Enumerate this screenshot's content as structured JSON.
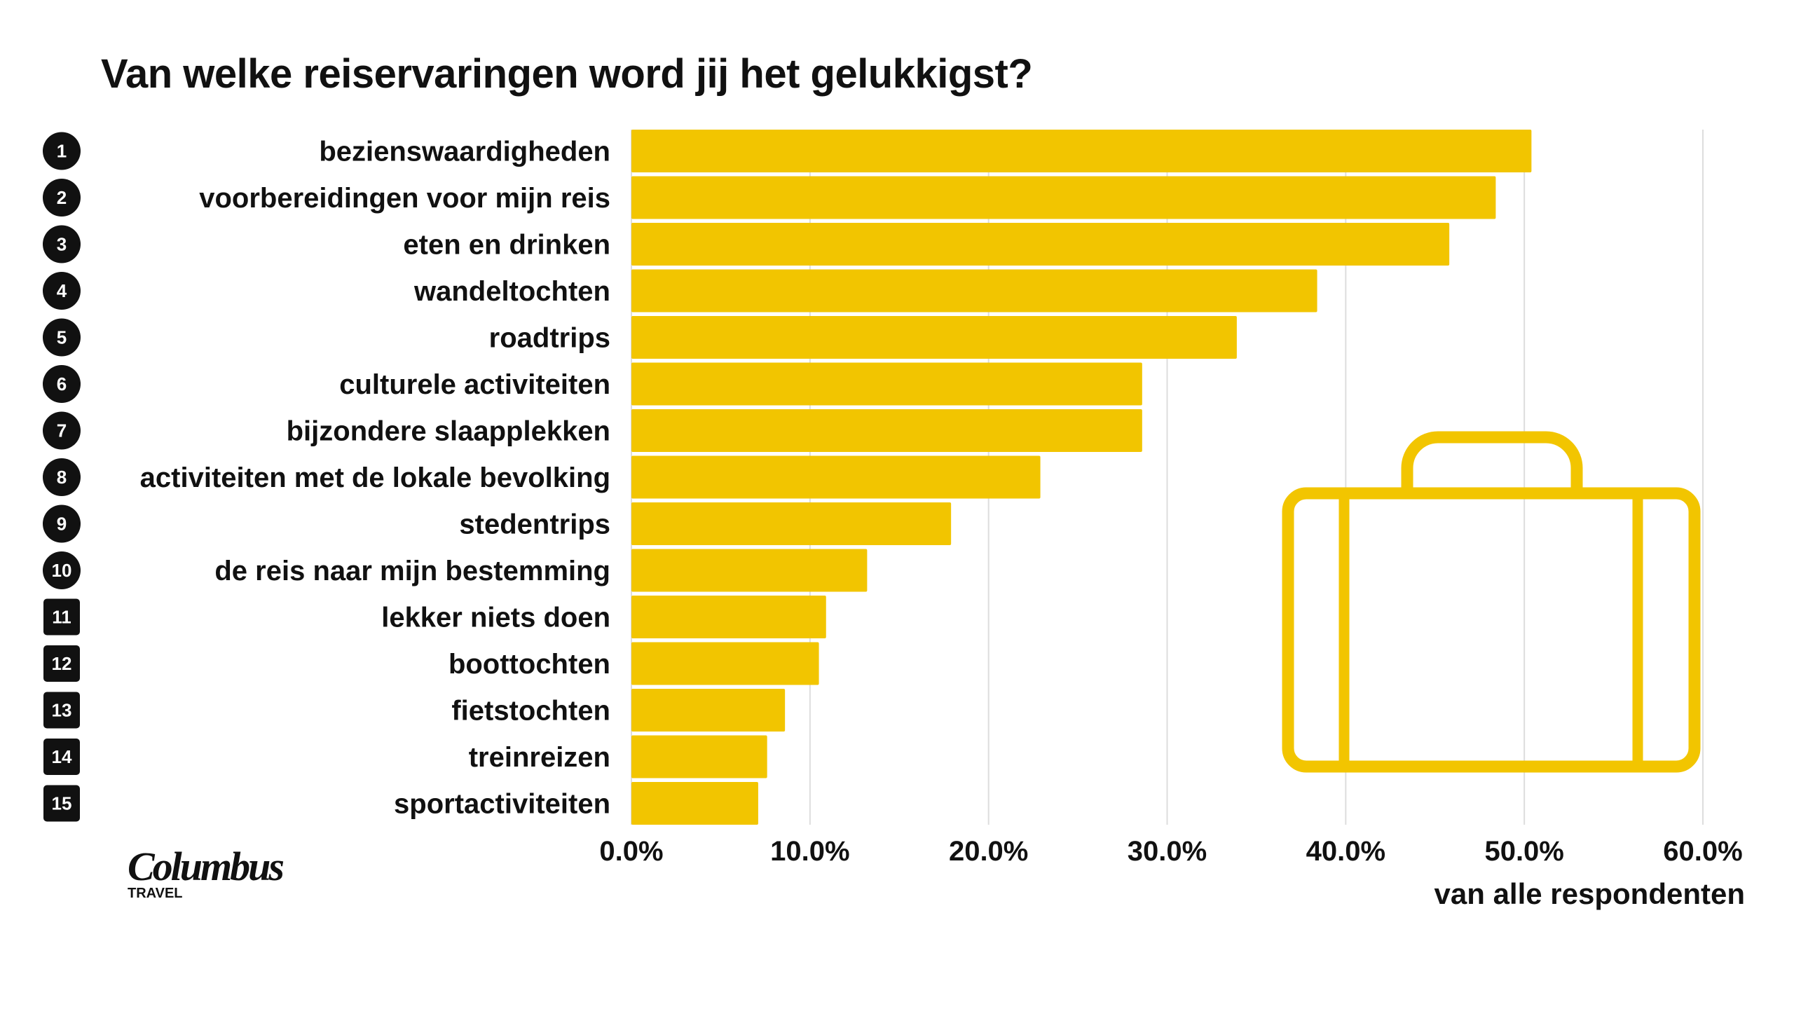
{
  "chart_data": {
    "type": "bar",
    "orientation": "horizontal",
    "title": "Van welke reiservaringen word jij het gelukkigst?",
    "xlabel": "van alle respondenten",
    "ylabel": "",
    "xlim": [
      0,
      60
    ],
    "ticks": [
      "0.0%",
      "10.0%",
      "20.0%",
      "30.0%",
      "40.0%",
      "50.0%",
      "60.0%"
    ],
    "tick_values": [
      0,
      10,
      20,
      30,
      40,
      50,
      60
    ],
    "grid": true,
    "ranks": [
      "1",
      "2",
      "3",
      "4",
      "5",
      "6",
      "7",
      "8",
      "9",
      "10",
      "11",
      "12",
      "13",
      "14",
      "15"
    ],
    "categories": [
      "bezienswaardigheden",
      "voorbereidingen voor mijn reis",
      "eten en drinken",
      "wandeltochten",
      "roadtrips",
      "culturele activiteiten",
      "bijzondere slaapplekken",
      "activiteiten met de lokale bevolking",
      "stedentrips",
      "de reis naar mijn bestemming",
      "lekker niets doen",
      "boottochten",
      "fietstochten",
      "treinreizen",
      "sportactiviteiten"
    ],
    "values": [
      50.4,
      48.4,
      45.8,
      38.4,
      33.9,
      28.6,
      28.6,
      22.9,
      17.9,
      13.2,
      10.9,
      10.5,
      8.6,
      7.6,
      7.1
    ],
    "bar_color": "#f2c500"
  },
  "logo": {
    "main": "Columbus",
    "sub": "TRAVEL"
  }
}
